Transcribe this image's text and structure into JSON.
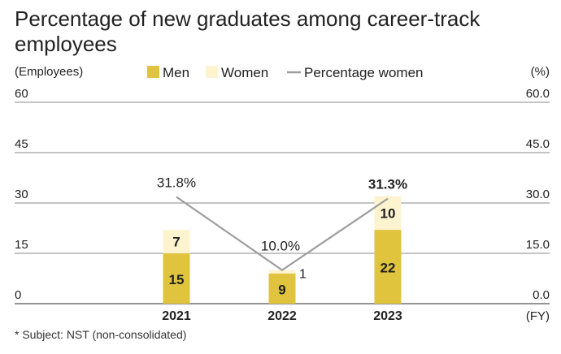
{
  "title": "Percentage of new graduates among career-track employees",
  "footnote": "* Subject: NST (non-consolidated)",
  "left_axis_unit": "(Employees)",
  "right_axis_unit": "(%)",
  "x_axis_unit": "(FY)",
  "legend": {
    "men": "Men",
    "women": "Women",
    "pct": "Percentage women"
  },
  "colors": {
    "men": "#e0c43e",
    "women": "#fdf3cf",
    "line": "#9e9e9e",
    "grid": "#8a8a8a"
  },
  "chart_data": {
    "type": "bar",
    "stacked": true,
    "categories": [
      "2021",
      "2022",
      "2023"
    ],
    "series": [
      {
        "name": "Men",
        "values": [
          15,
          9,
          22
        ]
      },
      {
        "name": "Women",
        "values": [
          7,
          1,
          10
        ]
      },
      {
        "name": "Percentage women",
        "values": [
          31.8,
          10.0,
          31.3
        ],
        "axis": "right",
        "type": "line"
      }
    ],
    "value_labels": {
      "men": [
        "15",
        "9",
        "22"
      ],
      "women": [
        "7",
        "1",
        "10"
      ],
      "pct": [
        "31.8%",
        "10.0%",
        "31.3%"
      ]
    },
    "y_left": {
      "ticks": [
        "0",
        "15",
        "30",
        "45",
        "60"
      ],
      "lim": [
        0,
        60
      ]
    },
    "y_right": {
      "ticks": [
        "0.0",
        "15.0",
        "30.0",
        "45.0",
        "60.0"
      ],
      "lim": [
        0,
        60
      ]
    },
    "grid": true,
    "legend_position": "top"
  }
}
